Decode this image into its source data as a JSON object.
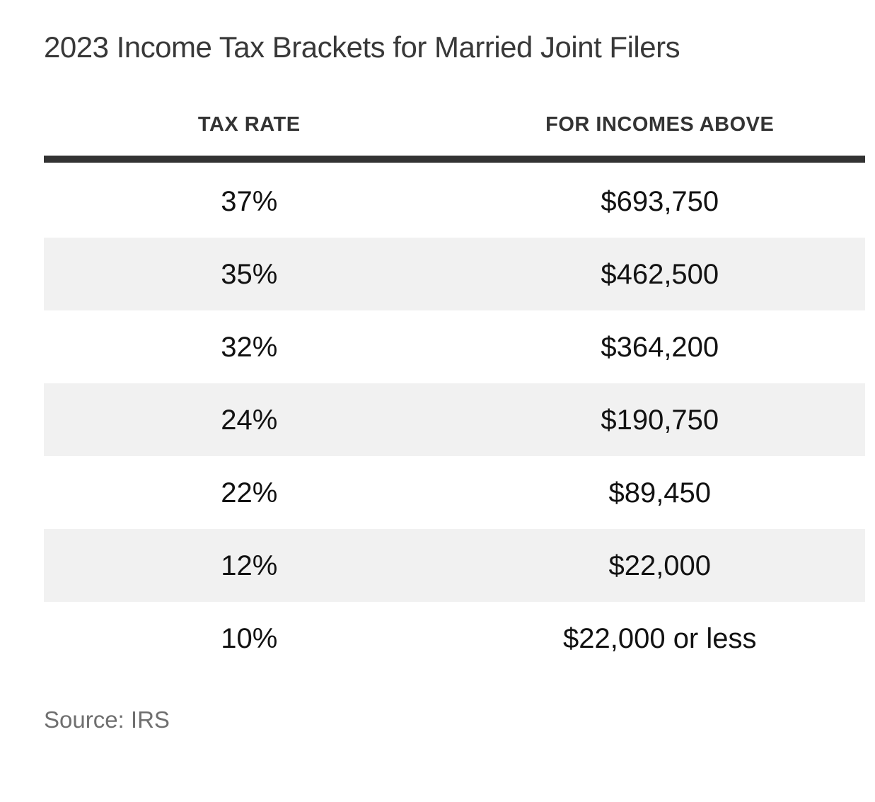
{
  "title": "2023 Income Tax Brackets for Married Joint Filers",
  "source": "Source: IRS",
  "colors": {
    "background": "#ffffff",
    "title_text": "#383838",
    "header_text": "#333333",
    "top_rule": "#333333",
    "cell_text": "#121212",
    "zebra_row": "#f1f1f1",
    "source_text": "#6f6f6f"
  },
  "table": {
    "headers": [
      {
        "label": "TAX RATE"
      },
      {
        "label": "FOR INCOMES ABOVE"
      }
    ],
    "rows": [
      {
        "rate": "37%",
        "income": "$693,750"
      },
      {
        "rate": "35%",
        "income": "$462,500"
      },
      {
        "rate": "32%",
        "income": "$364,200"
      },
      {
        "rate": "24%",
        "income": "$190,750"
      },
      {
        "rate": "22%",
        "income": "$89,450"
      },
      {
        "rate": "12%",
        "income": "$22,000"
      },
      {
        "rate": "10%",
        "income": "$22,000 or less"
      }
    ]
  },
  "chart_data": {
    "type": "table",
    "title": "2023 Income Tax Brackets for Married Joint Filers",
    "columns": [
      "TAX RATE",
      "FOR INCOMES ABOVE"
    ],
    "rows": [
      [
        "37%",
        "$693,750"
      ],
      [
        "35%",
        "$462,500"
      ],
      [
        "32%",
        "$364,200"
      ],
      [
        "24%",
        "$190,750"
      ],
      [
        "22%",
        "$89,450"
      ],
      [
        "12%",
        "$22,000"
      ],
      [
        "10%",
        "$22,000 or less"
      ]
    ],
    "tax_rates_percent": [
      37,
      35,
      32,
      24,
      22,
      12,
      10
    ],
    "income_thresholds_usd": [
      693750,
      462500,
      364200,
      190750,
      89450,
      22000,
      22000
    ],
    "layout": {
      "zebra_striping": true,
      "shaded_row_indexes": [
        1,
        3,
        5
      ],
      "column_alignment": "center"
    },
    "source": "Source: IRS"
  }
}
